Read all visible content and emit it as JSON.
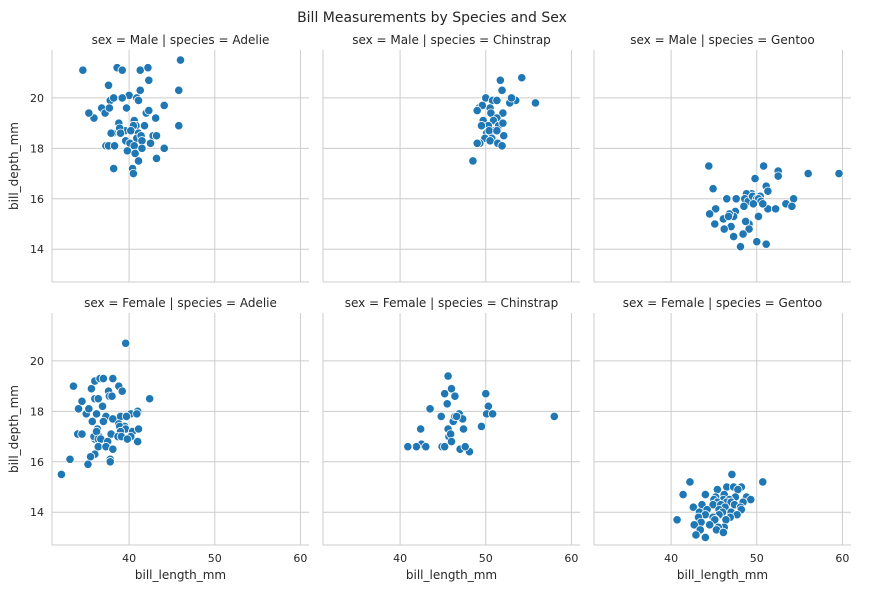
{
  "chart_data": {
    "type": "scatter",
    "title": "Bill Measurements by Species and Sex",
    "xlabel": "bill_length_mm",
    "ylabel": "bill_depth_mm",
    "xlim": [
      31,
      61
    ],
    "ylim": [
      12.7,
      21.9
    ],
    "xticks": [
      40,
      50,
      60
    ],
    "yticks": [
      14,
      16,
      18,
      20
    ],
    "grid": true,
    "marker_color": "#1f77b4",
    "panels": [
      {
        "title": "sex = Male | species = Adelie",
        "points": [
          [
            34.6,
            21.1
          ],
          [
            38.6,
            21.2
          ],
          [
            39.2,
            21.1
          ],
          [
            41.3,
            21.1
          ],
          [
            42.2,
            21.2
          ],
          [
            46.0,
            21.5
          ],
          [
            37.6,
            20.5
          ],
          [
            40.0,
            20.1
          ],
          [
            40.9,
            20.0
          ],
          [
            41.3,
            20.3
          ],
          [
            42.3,
            20.7
          ],
          [
            45.8,
            20.3
          ],
          [
            36.8,
            19.6
          ],
          [
            37.8,
            19.9
          ],
          [
            38.2,
            20.0
          ],
          [
            39.2,
            20.0
          ],
          [
            37.2,
            19.4
          ],
          [
            35.9,
            19.2
          ],
          [
            35.3,
            19.4
          ],
          [
            37.7,
            19.6
          ],
          [
            39.7,
            19.6
          ],
          [
            41.1,
            19.9
          ],
          [
            44.1,
            19.7
          ],
          [
            42.0,
            19.4
          ],
          [
            42.3,
            19.5
          ],
          [
            43.1,
            19.2
          ],
          [
            40.6,
            19.1
          ],
          [
            38.8,
            19.0
          ],
          [
            40.8,
            18.9
          ],
          [
            39.5,
            18.7
          ],
          [
            40.5,
            18.9
          ],
          [
            38.1,
            18.6
          ],
          [
            38.9,
            18.8
          ],
          [
            40.2,
            18.7
          ],
          [
            41.1,
            18.6
          ],
          [
            41.8,
            18.9
          ],
          [
            45.8,
            18.9
          ],
          [
            37.9,
            18.6
          ],
          [
            39.0,
            18.6
          ],
          [
            40.9,
            18.4
          ],
          [
            41.4,
            18.5
          ],
          [
            42.8,
            18.5
          ],
          [
            43.2,
            18.5
          ],
          [
            39.6,
            18.3
          ],
          [
            40.1,
            18.2
          ],
          [
            41.5,
            18.3
          ],
          [
            37.3,
            18.1
          ],
          [
            37.6,
            18.1
          ],
          [
            38.3,
            18.1
          ],
          [
            40.6,
            18.1
          ],
          [
            41.5,
            18.0
          ],
          [
            42.5,
            18.2
          ],
          [
            44.1,
            18.0
          ],
          [
            39.8,
            17.9
          ],
          [
            40.7,
            17.8
          ],
          [
            43.2,
            17.6
          ],
          [
            41.1,
            17.5
          ],
          [
            38.2,
            17.2
          ],
          [
            40.4,
            17.2
          ],
          [
            40.5,
            17.0
          ]
        ]
      },
      {
        "title": "sex = Male | species = Chinstrap",
        "points": [
          [
            54.2,
            20.8
          ],
          [
            51.7,
            20.7
          ],
          [
            51.9,
            20.3
          ],
          [
            53.5,
            19.9
          ],
          [
            50.0,
            20.0
          ],
          [
            50.8,
            19.9
          ],
          [
            49.2,
            19.6
          ],
          [
            50.5,
            19.6
          ],
          [
            52.8,
            19.8
          ],
          [
            55.8,
            19.8
          ],
          [
            53.0,
            20.0
          ],
          [
            51.3,
            19.9
          ],
          [
            49.6,
            19.7
          ],
          [
            50.6,
            19.4
          ],
          [
            52.0,
            19.4
          ],
          [
            49.0,
            19.5
          ],
          [
            51.3,
            19.2
          ],
          [
            49.7,
            19.1
          ],
          [
            50.9,
            19.1
          ],
          [
            51.5,
            18.9
          ],
          [
            52.0,
            19.0
          ],
          [
            50.3,
            18.9
          ],
          [
            49.5,
            18.9
          ],
          [
            50.1,
            18.6
          ],
          [
            51.0,
            18.7
          ],
          [
            50.4,
            18.7
          ],
          [
            50.7,
            18.4
          ],
          [
            49.9,
            18.4
          ],
          [
            51.3,
            18.7
          ],
          [
            52.1,
            18.5
          ],
          [
            49.3,
            18.2
          ],
          [
            49.0,
            18.2
          ],
          [
            50.5,
            18.3
          ],
          [
            51.4,
            18.2
          ],
          [
            51.9,
            18.1
          ],
          [
            48.5,
            17.5
          ]
        ]
      },
      {
        "title": "sex = Male | species = Gentoo",
        "points": [
          [
            44.4,
            17.3
          ],
          [
            50.8,
            17.3
          ],
          [
            52.5,
            17.1
          ],
          [
            52.5,
            16.9
          ],
          [
            56.0,
            17.0
          ],
          [
            59.6,
            17.0
          ],
          [
            49.8,
            16.8
          ],
          [
            51.1,
            16.5
          ],
          [
            51.3,
            16.3
          ],
          [
            44.9,
            16.4
          ],
          [
            49.8,
            16.1
          ],
          [
            50.4,
            16.1
          ],
          [
            49.4,
            16.2
          ],
          [
            48.8,
            16.2
          ],
          [
            47.6,
            16.0
          ],
          [
            46.5,
            16.0
          ],
          [
            48.6,
            16.0
          ],
          [
            49.0,
            15.9
          ],
          [
            49.5,
            16.1
          ],
          [
            50.0,
            16.0
          ],
          [
            50.2,
            16.0
          ],
          [
            50.5,
            15.9
          ],
          [
            51.3,
            15.6
          ],
          [
            49.6,
            15.8
          ],
          [
            48.5,
            15.7
          ],
          [
            50.7,
            15.8
          ],
          [
            54.3,
            16.0
          ],
          [
            53.4,
            15.8
          ],
          [
            54.1,
            15.7
          ],
          [
            47.5,
            15.5
          ],
          [
            47.3,
            15.3
          ],
          [
            46.1,
            15.2
          ],
          [
            45.2,
            15.6
          ],
          [
            46.8,
            15.4
          ],
          [
            49.1,
            15.0
          ],
          [
            50.2,
            15.3
          ],
          [
            52.2,
            15.6
          ],
          [
            44.5,
            15.4
          ],
          [
            46.7,
            15.3
          ],
          [
            48.7,
            15.1
          ],
          [
            45.1,
            15.0
          ],
          [
            49.1,
            14.8
          ],
          [
            47.0,
            14.9
          ],
          [
            46.2,
            14.8
          ],
          [
            48.4,
            14.6
          ],
          [
            47.3,
            14.5
          ],
          [
            50.0,
            14.3
          ],
          [
            51.1,
            14.2
          ],
          [
            48.1,
            14.1
          ]
        ]
      },
      {
        "title": "sex = Female | species = Adelie",
        "points": [
          [
            39.6,
            20.7
          ],
          [
            33.5,
            19.0
          ],
          [
            35.6,
            18.9
          ],
          [
            38.8,
            19.0
          ],
          [
            36.0,
            19.2
          ],
          [
            36.6,
            19.3
          ],
          [
            37.0,
            19.3
          ],
          [
            38.1,
            19.3
          ],
          [
            37.6,
            18.8
          ],
          [
            39.2,
            18.8
          ],
          [
            34.5,
            18.4
          ],
          [
            35.0,
            17.9
          ],
          [
            36.0,
            18.5
          ],
          [
            36.4,
            18.5
          ],
          [
            37.7,
            18.6
          ],
          [
            38.0,
            18.6
          ],
          [
            42.4,
            18.5
          ],
          [
            36.9,
            18.2
          ],
          [
            34.1,
            18.1
          ],
          [
            35.3,
            18.1
          ],
          [
            36.2,
            17.9
          ],
          [
            37.3,
            17.8
          ],
          [
            38.6,
            17.7
          ],
          [
            39.0,
            17.8
          ],
          [
            38.1,
            17.7
          ],
          [
            40.2,
            17.9
          ],
          [
            41.0,
            18.0
          ],
          [
            39.7,
            17.8
          ],
          [
            40.9,
            17.9
          ],
          [
            35.7,
            17.6
          ],
          [
            37.0,
            17.6
          ],
          [
            38.8,
            17.5
          ],
          [
            39.5,
            17.4
          ],
          [
            38.9,
            17.4
          ],
          [
            39.6,
            17.3
          ],
          [
            36.3,
            17.3
          ],
          [
            39.0,
            17.2
          ],
          [
            40.4,
            17.2
          ],
          [
            41.1,
            17.3
          ],
          [
            37.9,
            17.1
          ],
          [
            36.5,
            17.0
          ],
          [
            34.0,
            17.1
          ],
          [
            36.0,
            16.9
          ],
          [
            35.9,
            17.0
          ],
          [
            36.2,
            17.2
          ],
          [
            38.7,
            17.0
          ],
          [
            39.1,
            17.0
          ],
          [
            40.2,
            17.0
          ],
          [
            34.5,
            17.1
          ],
          [
            36.4,
            16.9
          ],
          [
            36.7,
            16.9
          ],
          [
            37.5,
            16.8
          ],
          [
            39.8,
            16.9
          ],
          [
            41.0,
            16.8
          ],
          [
            36.4,
            16.6
          ],
          [
            37.3,
            16.6
          ],
          [
            38.1,
            16.5
          ],
          [
            36.0,
            16.3
          ],
          [
            37.8,
            16.1
          ],
          [
            35.5,
            16.2
          ],
          [
            33.1,
            16.1
          ],
          [
            37.8,
            16.0
          ],
          [
            35.2,
            15.9
          ],
          [
            32.1,
            15.5
          ]
        ]
      },
      {
        "title": "sex = Female | species = Chinstrap",
        "points": [
          [
            45.6,
            19.4
          ],
          [
            46.0,
            18.9
          ],
          [
            45.2,
            18.7
          ],
          [
            46.4,
            18.6
          ],
          [
            50.0,
            18.7
          ],
          [
            45.5,
            18.3
          ],
          [
            50.3,
            18.2
          ],
          [
            43.5,
            18.1
          ],
          [
            46.9,
            17.9
          ],
          [
            50.1,
            17.9
          ],
          [
            50.8,
            17.9
          ],
          [
            58.0,
            17.8
          ],
          [
            42.4,
            17.3
          ],
          [
            44.8,
            17.8
          ],
          [
            46.2,
            17.6
          ],
          [
            46.4,
            17.8
          ],
          [
            47.3,
            17.7
          ],
          [
            45.6,
            17.3
          ],
          [
            47.4,
            17.3
          ],
          [
            49.5,
            17.4
          ],
          [
            46.6,
            17.8
          ],
          [
            45.7,
            17.0
          ],
          [
            45.9,
            17.1
          ],
          [
            42.5,
            16.7
          ],
          [
            41.9,
            16.6
          ],
          [
            43.0,
            16.6
          ],
          [
            44.9,
            16.6
          ],
          [
            47.0,
            16.5
          ],
          [
            48.1,
            16.4
          ],
          [
            46.0,
            16.8
          ],
          [
            47.6,
            16.6
          ],
          [
            45.2,
            16.6
          ],
          [
            41.0,
            16.6
          ],
          [
            40.9,
            16.6
          ]
        ]
      },
      {
        "title": "sex = Female | species = Gentoo",
        "points": [
          [
            47.1,
            15.5
          ],
          [
            42.2,
            15.2
          ],
          [
            50.7,
            15.2
          ],
          [
            46.5,
            15.0
          ],
          [
            47.3,
            15.0
          ],
          [
            48.2,
            15.0
          ],
          [
            45.4,
            14.9
          ],
          [
            47.8,
            14.9
          ],
          [
            41.4,
            14.7
          ],
          [
            44.0,
            14.7
          ],
          [
            46.2,
            14.7
          ],
          [
            45.2,
            14.6
          ],
          [
            47.5,
            14.6
          ],
          [
            48.8,
            14.6
          ],
          [
            45.0,
            14.5
          ],
          [
            46.1,
            14.5
          ],
          [
            46.8,
            14.5
          ],
          [
            49.3,
            14.5
          ],
          [
            45.4,
            14.4
          ],
          [
            46.5,
            14.4
          ],
          [
            47.0,
            14.4
          ],
          [
            48.4,
            14.4
          ],
          [
            43.6,
            14.3
          ],
          [
            44.9,
            14.3
          ],
          [
            45.8,
            14.3
          ],
          [
            47.4,
            14.3
          ],
          [
            42.6,
            14.2
          ],
          [
            46.3,
            14.2
          ],
          [
            48.1,
            14.2
          ],
          [
            44.2,
            14.1
          ],
          [
            45.6,
            14.1
          ],
          [
            48.2,
            14.1
          ],
          [
            43.3,
            14.0
          ],
          [
            46.0,
            14.0
          ],
          [
            47.0,
            14.0
          ],
          [
            44.0,
            13.9
          ],
          [
            45.6,
            13.9
          ],
          [
            47.7,
            13.9
          ],
          [
            43.2,
            13.8
          ],
          [
            44.9,
            13.8
          ],
          [
            46.9,
            13.8
          ],
          [
            40.7,
            13.7
          ],
          [
            46.4,
            13.7
          ],
          [
            45.2,
            13.7
          ],
          [
            45.1,
            13.7
          ],
          [
            43.5,
            13.6
          ],
          [
            42.7,
            13.5
          ],
          [
            44.5,
            13.5
          ],
          [
            46.2,
            13.4
          ],
          [
            45.5,
            13.4
          ],
          [
            43.4,
            13.3
          ],
          [
            45.3,
            13.3
          ],
          [
            42.9,
            13.1
          ],
          [
            46.1,
            13.2
          ],
          [
            44.0,
            13.0
          ]
        ]
      }
    ]
  }
}
